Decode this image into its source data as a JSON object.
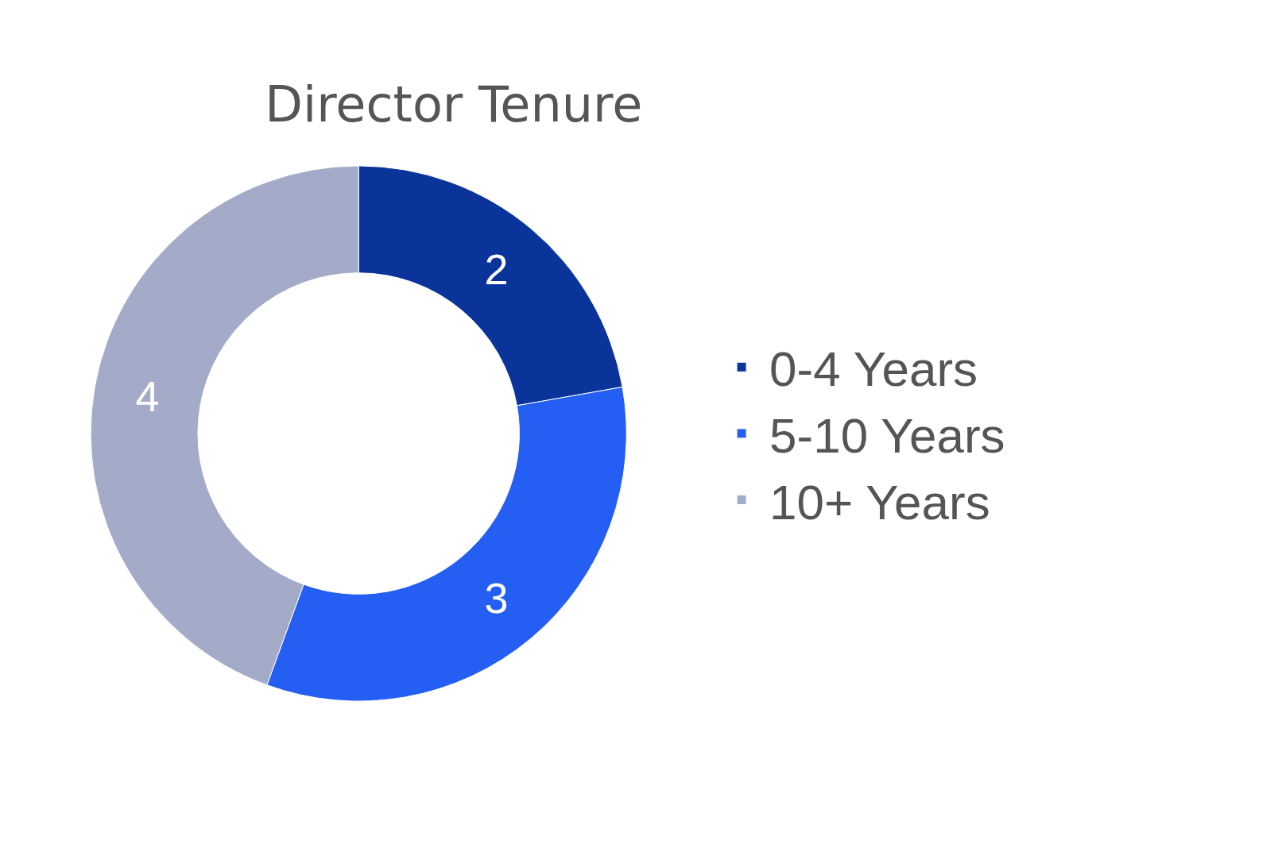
{
  "chart_data": {
    "type": "donut",
    "title": "Director Tenure",
    "categories": [
      "0-4 Years",
      "5-10 Years",
      "10+ Years"
    ],
    "values": [
      2,
      3,
      4
    ],
    "colors": [
      "#0a3499",
      "#245ef2",
      "#a4abc8"
    ],
    "data_labels": true,
    "legend": "right"
  }
}
